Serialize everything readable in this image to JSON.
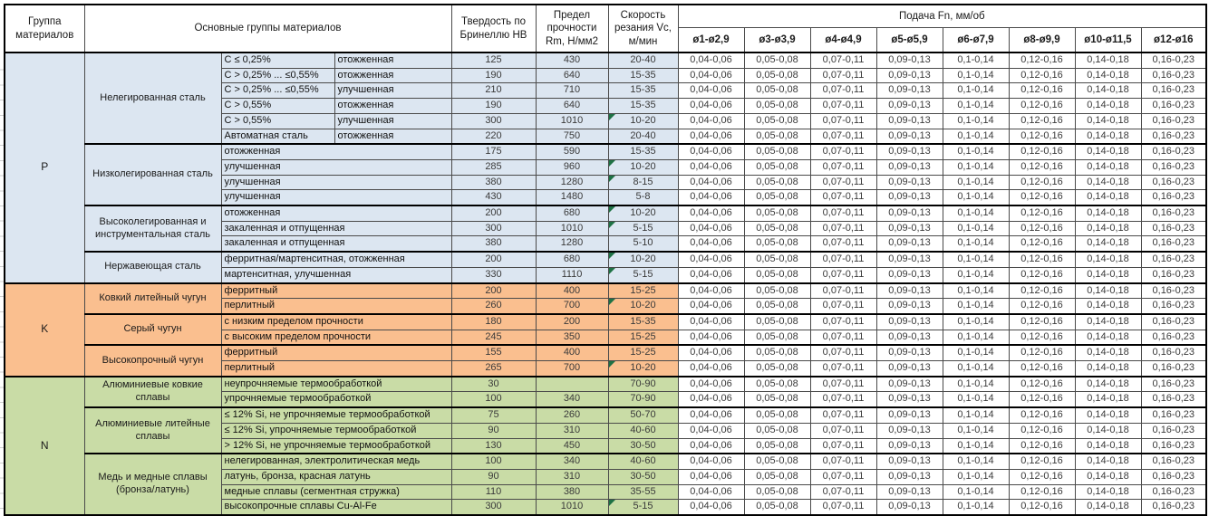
{
  "header": {
    "material_group": "Группа материалов",
    "main_groups": "Основные группы материалов",
    "hardness": "Твердость по Бринеллю HB",
    "strength": "Предел прочности Rm, Н/мм2",
    "cutting_speed": "Скорость резания Vc, м/мин"
  },
  "feed": {
    "title": "Подача Fn, мм/об",
    "columns": [
      "ø1-ø2,9",
      "ø3-ø3,9",
      "ø4-ø4,9",
      "ø5-ø5,9",
      "ø6-ø7,9",
      "ø8-ø9,9",
      "ø10-ø11,5",
      "ø12-ø16"
    ],
    "row_values": [
      "0,04-0,06",
      "0,05-0,08",
      "0,07-0,11",
      "0,09-0,13",
      "0,1-0,14",
      "0,12-0,16",
      "0,14-0,18",
      "0,16-0,23"
    ]
  },
  "colors": {
    "group_P": "#DCE6F1",
    "group_K": "#FABF8F",
    "group_N": "#C9DCA6",
    "marker": "#1F7245"
  },
  "groups": [
    {
      "code": "P",
      "color": "#DCE6F1",
      "subgroups": [
        {
          "name": "Нелегированная сталь",
          "rows": [
            {
              "c": "C ≤ 0,25%",
              "state": "отожженная",
              "hb": "125",
              "rm": "430",
              "vc": "20-40",
              "marker": false
            },
            {
              "c": "C > 0,25% ... ≤0,55%",
              "state": "отожженная",
              "hb": "190",
              "rm": "640",
              "vc": "15-35",
              "marker": false
            },
            {
              "c": "C > 0,25% ... ≤0,55%",
              "state": "улучшенная",
              "hb": "210",
              "rm": "710",
              "vc": "15-35",
              "marker": false
            },
            {
              "c": "C > 0,55%",
              "state": "отожженная",
              "hb": "190",
              "rm": "640",
              "vc": "15-35",
              "marker": false
            },
            {
              "c": "C > 0,55%",
              "state": "улучшенная",
              "hb": "300",
              "rm": "1010",
              "vc": "10-20",
              "marker": true
            },
            {
              "c": "Автоматная сталь",
              "state": "отожженная",
              "hb": "220",
              "rm": "750",
              "vc": "20-40",
              "marker": false
            }
          ]
        },
        {
          "name": "Низколегированная сталь",
          "rows": [
            {
              "desc": "отожженная",
              "hb": "175",
              "rm": "590",
              "vc": "15-35",
              "marker": false
            },
            {
              "desc": "улучшенная",
              "hb": "285",
              "rm": "960",
              "vc": "10-20",
              "marker": true
            },
            {
              "desc": "улучшенная",
              "hb": "380",
              "rm": "1280",
              "vc": "8-15",
              "marker": true
            },
            {
              "desc": "улучшенная",
              "hb": "430",
              "rm": "1480",
              "vc": "5-8",
              "marker": false
            }
          ]
        },
        {
          "name": "Высоколегированная и инструментальная сталь",
          "rows": [
            {
              "desc": "отожженная",
              "hb": "200",
              "rm": "680",
              "vc": "10-20",
              "marker": true
            },
            {
              "desc": "закаленная и отпущенная",
              "hb": "300",
              "rm": "1010",
              "vc": "5-15",
              "marker": true
            },
            {
              "desc": "закаленная и отпущенная",
              "hb": "380",
              "rm": "1280",
              "vc": "5-10",
              "marker": false
            }
          ]
        },
        {
          "name": "Нержавеющая сталь",
          "rows": [
            {
              "desc": "ферритная/мартенситная, отожженная",
              "hb": "200",
              "rm": "680",
              "vc": "10-20",
              "marker": true
            },
            {
              "desc": "мартенситная, улучшенная",
              "hb": "330",
              "rm": "1110",
              "vc": "5-15",
              "marker": true
            }
          ]
        }
      ]
    },
    {
      "code": "K",
      "color": "#FABF8F",
      "subgroups": [
        {
          "name": "Ковкий литейный чугун",
          "rows": [
            {
              "desc": "ферритный",
              "hb": "200",
              "rm": "400",
              "vc": "15-25",
              "marker": false
            },
            {
              "desc": "перлитный",
              "hb": "260",
              "rm": "700",
              "vc": "10-20",
              "marker": true
            }
          ]
        },
        {
          "name": "Серый чугун",
          "rows": [
            {
              "desc": "с низким пределом прочности",
              "hb": "180",
              "rm": "200",
              "vc": "15-35",
              "marker": false
            },
            {
              "desc": "с высоким пределом прочности",
              "hb": "245",
              "rm": "350",
              "vc": "15-25",
              "marker": false
            }
          ]
        },
        {
          "name": "Высокопрочный чугун",
          "rows": [
            {
              "desc": "ферритный",
              "hb": "155",
              "rm": "400",
              "vc": "15-25",
              "marker": false
            },
            {
              "desc": "перлитный",
              "hb": "265",
              "rm": "700",
              "vc": "10-20",
              "marker": true
            }
          ]
        }
      ]
    },
    {
      "code": "N",
      "color": "#C9DCA6",
      "subgroups": [
        {
          "name": "Алюминиевые ковкие сплавы",
          "rows": [
            {
              "desc": "неупрочняемые термообработкой",
              "hb": "30",
              "rm": "",
              "vc": "70-90",
              "marker": false
            },
            {
              "desc": "упрочняемые термообработкой",
              "hb": "100",
              "rm": "340",
              "vc": "70-90",
              "marker": false
            }
          ]
        },
        {
          "name": "Алюминиевые литейные сплавы",
          "rows": [
            {
              "desc": "≤ 12% Si, не упрочняемые термообработкой",
              "hb": "75",
              "rm": "260",
              "vc": "50-70",
              "marker": false
            },
            {
              "desc": "≤ 12% Si, упрочняемые термообработкой",
              "hb": "90",
              "rm": "310",
              "vc": "40-60",
              "marker": false
            },
            {
              "desc": "> 12% Si, не упрочняемые термообработкой",
              "hb": "130",
              "rm": "450",
              "vc": "30-50",
              "marker": false
            }
          ]
        },
        {
          "name": "Медь и медные сплавы (бронза/латунь)",
          "rows": [
            {
              "desc": "нелегированная, электролитическая медь",
              "hb": "100",
              "rm": "340",
              "vc": "40-60",
              "marker": false
            },
            {
              "desc": "латунь, бронза, красная латунь",
              "hb": "90",
              "rm": "310",
              "vc": "30-50",
              "marker": false
            },
            {
              "desc": "медные сплавы (сегментная стружка)",
              "hb": "110",
              "rm": "380",
              "vc": "35-55",
              "marker": false
            },
            {
              "desc": "высокопрочные сплавы Cu-Al-Fe",
              "hb": "300",
              "rm": "1010",
              "vc": "5-15",
              "marker": true
            }
          ]
        }
      ]
    }
  ]
}
